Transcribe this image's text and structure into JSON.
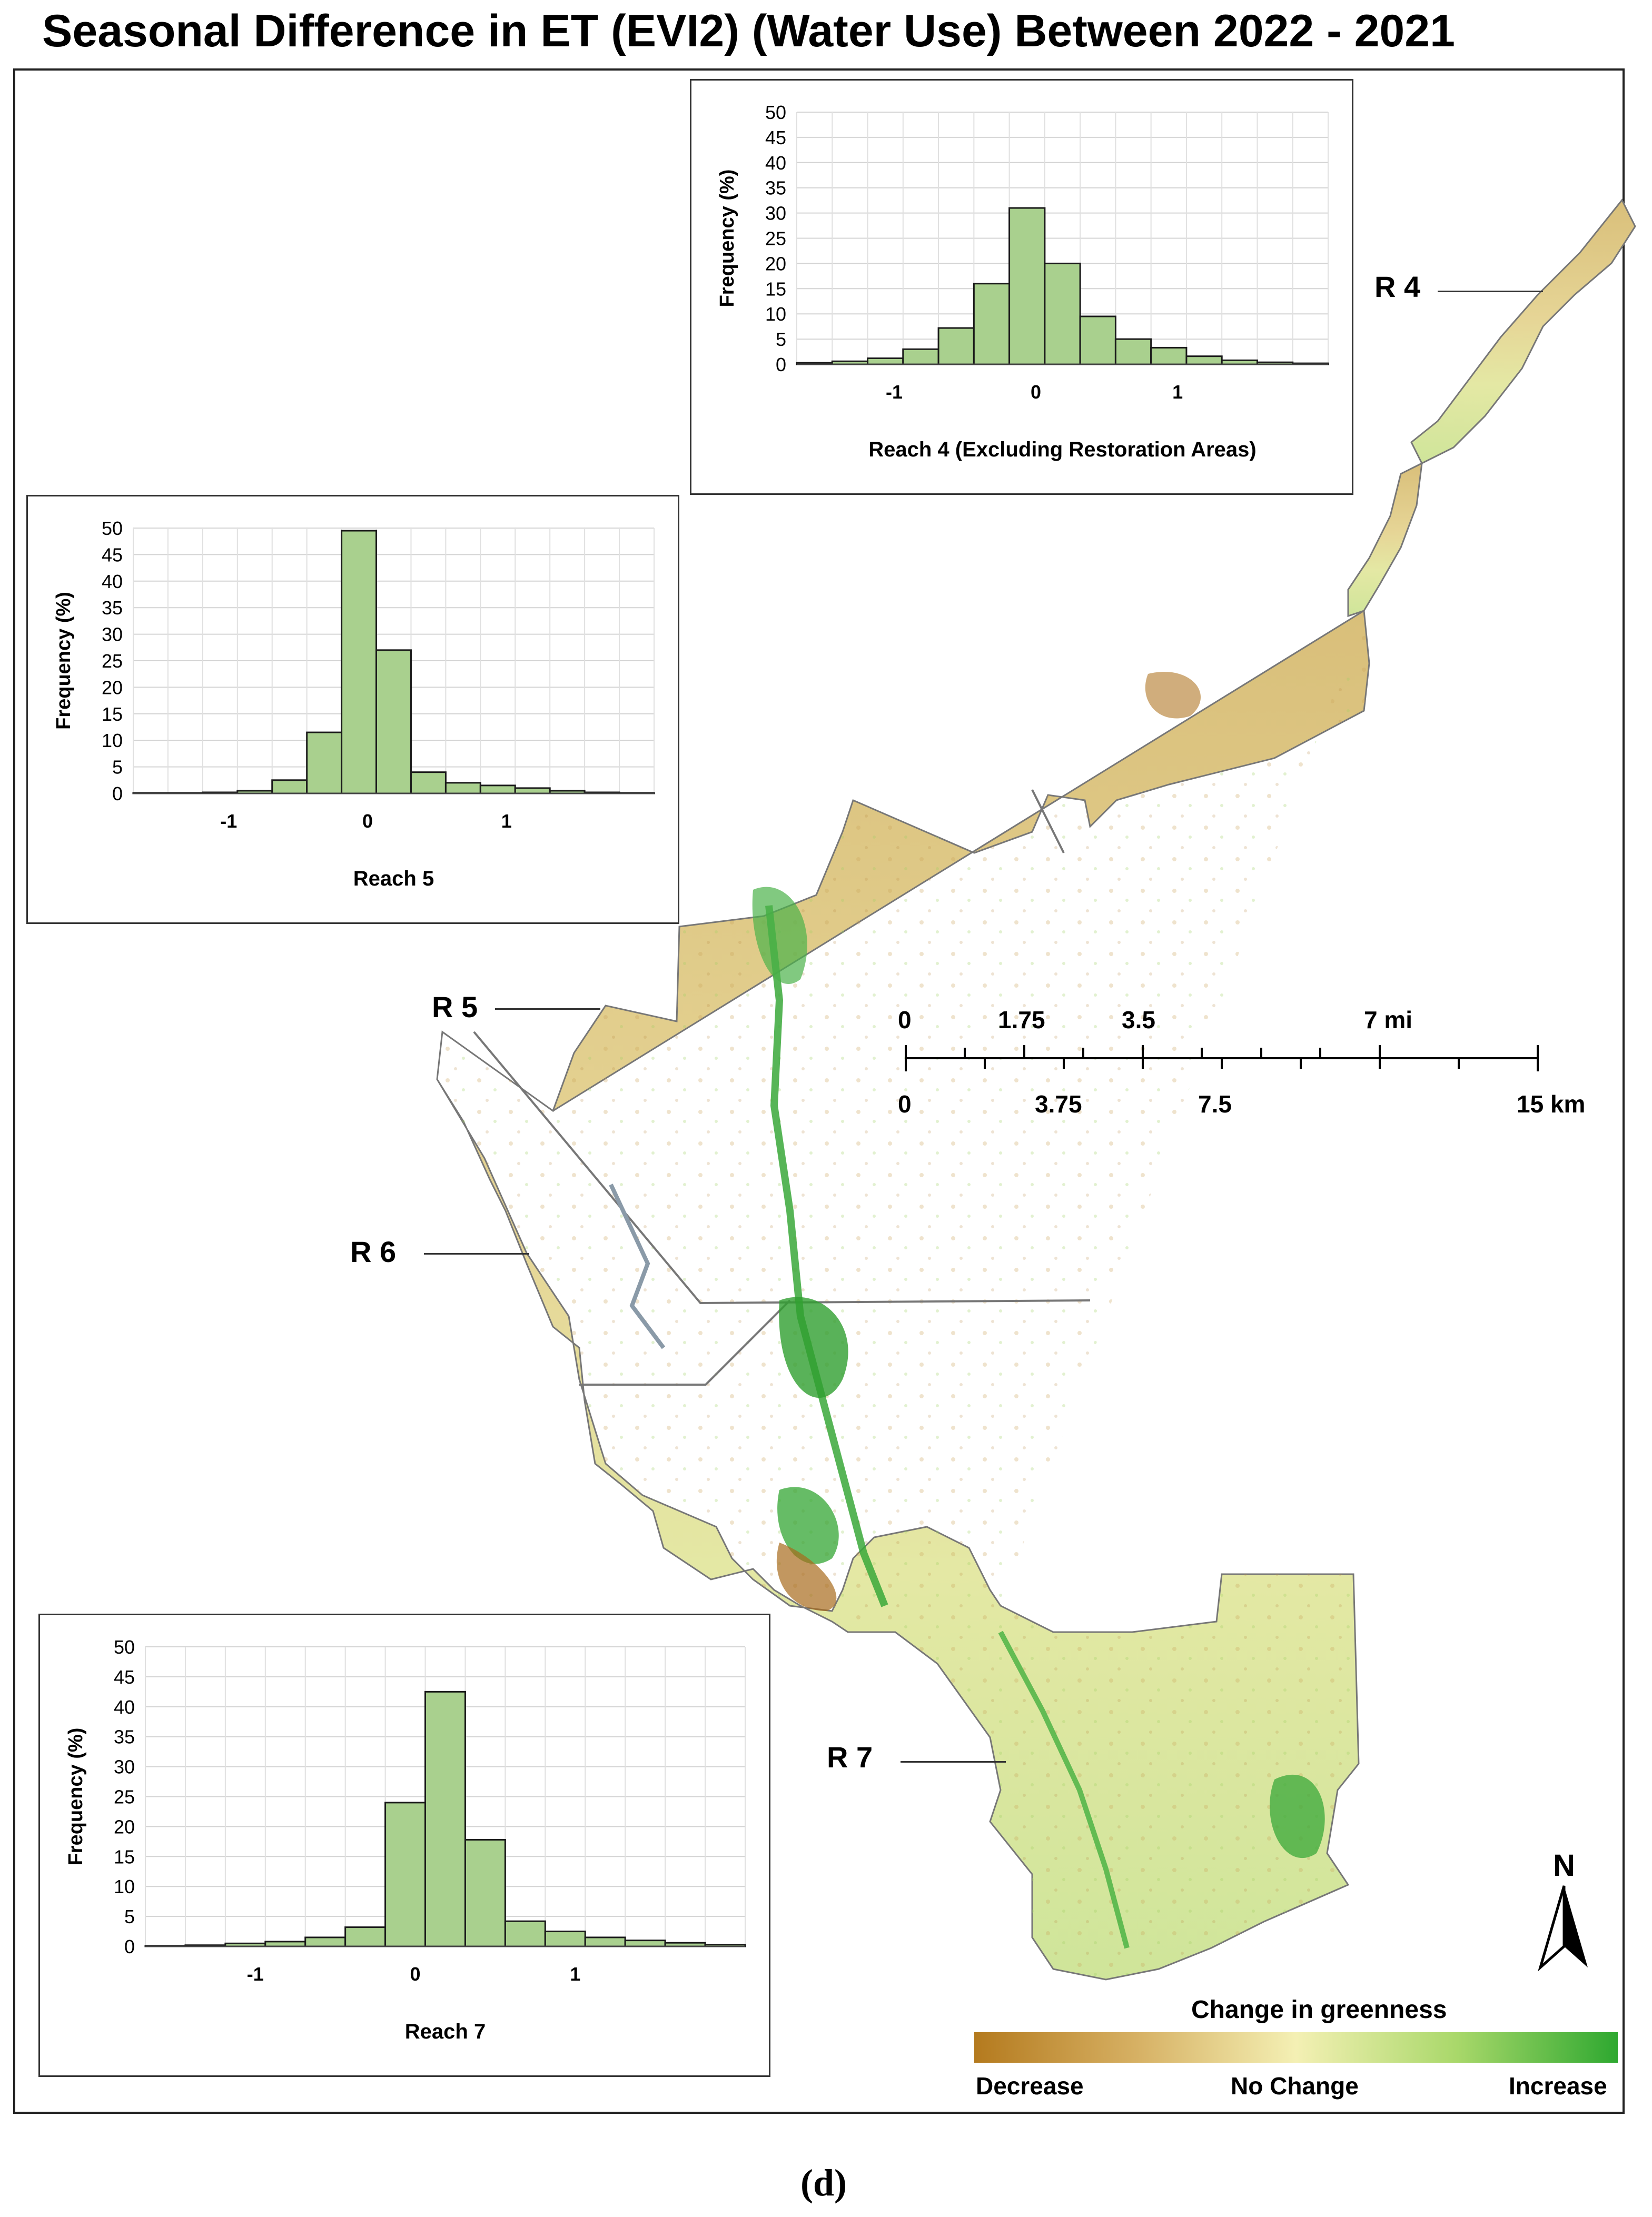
{
  "title": "Seasonal Difference in ET (EVI2) (Water Use) Between 2022 - 2021",
  "caption": "(d)",
  "colors": {
    "decrease": "#b47a1e",
    "no_change": "#f4f0b4",
    "increase": "#2ea830",
    "bar_fill": "#a9d08e",
    "boundary": "#777777"
  },
  "reaches": {
    "r4": "R 4",
    "r5": "R 5",
    "r6": "R 6",
    "r7": "R 7"
  },
  "histograms": [
    {
      "id": "reach4",
      "xlabel": "Reach 4 (Excluding Restoration Areas)",
      "ylabel": "Frequency (%)",
      "ylim": [
        0,
        50
      ],
      "yticks": [
        "0",
        "5",
        "10",
        "15",
        "20",
        "25",
        "30",
        "35",
        "40",
        "45",
        "50"
      ],
      "xticks": [
        "-1",
        "0",
        "1"
      ],
      "values": [
        0.3,
        0.6,
        1.2,
        3,
        7.2,
        16,
        31,
        20,
        9.5,
        5,
        3.3,
        1.6,
        0.8,
        0.4,
        0.2
      ]
    },
    {
      "id": "reach5",
      "xlabel": "Reach 5",
      "ylabel": "Frequency (%)",
      "ylim": [
        0,
        50
      ],
      "yticks": [
        "0",
        "5",
        "10",
        "15",
        "20",
        "25",
        "30",
        "35",
        "40",
        "45",
        "50"
      ],
      "xticks": [
        "-1",
        "0",
        "1"
      ],
      "values": [
        0.1,
        0.1,
        0.2,
        0.5,
        2.5,
        11.5,
        49.5,
        27,
        4,
        2,
        1.5,
        1,
        0.5,
        0.2,
        0.1
      ]
    },
    {
      "id": "reach7",
      "xlabel": "Reach 7",
      "ylabel": "Frequency (%)",
      "ylim": [
        0,
        50
      ],
      "yticks": [
        "0",
        "5",
        "10",
        "15",
        "20",
        "25",
        "30",
        "35",
        "40",
        "45",
        "50"
      ],
      "xticks": [
        "-1",
        "0",
        "1"
      ],
      "values": [
        0.1,
        0.2,
        0.5,
        0.8,
        1.5,
        3.2,
        24,
        42.5,
        17.8,
        4.2,
        2.5,
        1.5,
        1,
        0.6,
        0.3
      ]
    }
  ],
  "scale_bar": {
    "mi_labels": [
      "0",
      "1.75",
      "3.5",
      "7 mi"
    ],
    "km_labels": [
      "0",
      "3.75",
      "7.5",
      "15 km"
    ]
  },
  "north_label": "N",
  "legend": {
    "title": "Change in greenness",
    "low": "Decrease",
    "mid": "No Change",
    "high": "Increase"
  }
}
